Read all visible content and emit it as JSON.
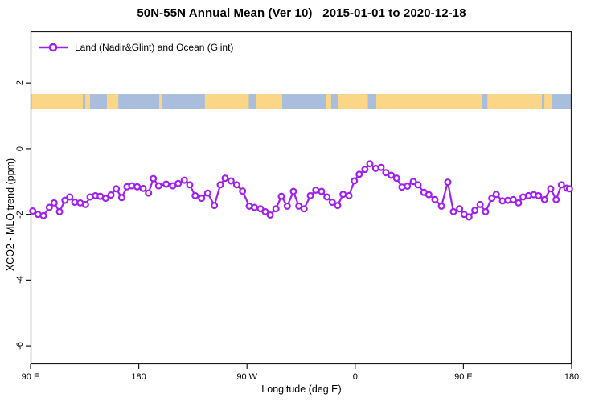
{
  "title": "50N-55N Annual Mean (Ver 10)   2015-01-01 to 2020-12-18",
  "legend": {
    "label": "Land (Nadir&Glint) and Ocean (Glint)"
  },
  "colors": {
    "series": "#A020F0",
    "land": "#FBD687",
    "ocean": "#A9BEDD",
    "axis": "#1a1a1a"
  },
  "chart_data": {
    "type": "line",
    "title": "50N-55N Annual Mean (Ver 10)   2015-01-01 to 2020-12-18",
    "xlabel": "Longitude (deg E)",
    "ylabel": "XCO2 - MLO trend (ppm)",
    "xlim_deg_offset": [
      0,
      450
    ],
    "ylim": [
      -6.56,
      3.57
    ],
    "grid": false,
    "legend_position": "top",
    "x_ticks": [
      {
        "offset": 0,
        "label": "90 E"
      },
      {
        "offset": 90,
        "label": "180"
      },
      {
        "offset": 180,
        "label": "90 W"
      },
      {
        "offset": 270,
        "label": "0"
      },
      {
        "offset": 360,
        "label": "90 E"
      },
      {
        "offset": 450,
        "label": "180"
      }
    ],
    "y_ticks": [
      {
        "value": 2,
        "label": "2"
      },
      {
        "value": 0,
        "label": "0"
      },
      {
        "value": -2,
        "label": "-2"
      },
      {
        "value": -4,
        "label": "-4"
      },
      {
        "value": -6,
        "label": "-6"
      }
    ],
    "series": [
      {
        "name": "Land (Nadir&Glint) and Ocean (Glint)",
        "color": "#A020F0",
        "marker": "open-circle",
        "points": [
          [
            1.8,
            -1.9
          ],
          [
            6.2,
            -2.0
          ],
          [
            10.7,
            -2.04
          ],
          [
            15.6,
            -1.79
          ],
          [
            19.6,
            -1.65
          ],
          [
            24.1,
            -1.92
          ],
          [
            28.6,
            -1.57
          ],
          [
            32.6,
            -1.47
          ],
          [
            36.8,
            -1.63
          ],
          [
            41.3,
            -1.65
          ],
          [
            45.7,
            -1.7
          ],
          [
            49.5,
            -1.47
          ],
          [
            54.0,
            -1.43
          ],
          [
            58.0,
            -1.45
          ],
          [
            62.4,
            -1.51
          ],
          [
            66.9,
            -1.41
          ],
          [
            71.3,
            -1.22
          ],
          [
            75.8,
            -1.49
          ],
          [
            80.2,
            -1.16
          ],
          [
            84.2,
            -1.13
          ],
          [
            88.7,
            -1.16
          ],
          [
            93.6,
            -1.21
          ],
          [
            98.1,
            -1.35
          ],
          [
            102.1,
            -0.91
          ],
          [
            106.5,
            -1.13
          ],
          [
            112.8,
            -1.08
          ],
          [
            118.3,
            -1.13
          ],
          [
            122.8,
            -1.06
          ],
          [
            127.9,
            -0.96
          ],
          [
            132.4,
            -1.1
          ],
          [
            136.9,
            -1.43
          ],
          [
            142.2,
            -1.51
          ],
          [
            147.3,
            -1.35
          ],
          [
            152.9,
            -1.73
          ],
          [
            157.8,
            -1.1
          ],
          [
            161.8,
            -0.9
          ],
          [
            166.7,
            -0.98
          ],
          [
            171.4,
            -1.1
          ],
          [
            176.3,
            -1.29
          ],
          [
            181.9,
            -1.75
          ],
          [
            186.3,
            -1.79
          ],
          [
            191.2,
            -1.83
          ],
          [
            195.2,
            -1.92
          ],
          [
            199.3,
            -2.02
          ],
          [
            204.1,
            -1.83
          ],
          [
            208.6,
            -1.45
          ],
          [
            213.5,
            -1.75
          ],
          [
            218.6,
            -1.3
          ],
          [
            223.1,
            -1.75
          ],
          [
            227.5,
            -1.83
          ],
          [
            232.7,
            -1.43
          ],
          [
            237.2,
            -1.26
          ],
          [
            242.0,
            -1.3
          ],
          [
            246.5,
            -1.47
          ],
          [
            250.9,
            -1.63
          ],
          [
            255.4,
            -1.73
          ],
          [
            259.9,
            -1.39
          ],
          [
            264.8,
            -1.43
          ],
          [
            269.3,
            -0.98
          ],
          [
            273.3,
            -0.78
          ],
          [
            278.1,
            -0.63
          ],
          [
            282.2,
            -0.46
          ],
          [
            287.0,
            -0.6
          ],
          [
            291.5,
            -0.57
          ],
          [
            295.5,
            -0.73
          ],
          [
            300.0,
            -0.81
          ],
          [
            304.4,
            -0.9
          ],
          [
            308.9,
            -1.17
          ],
          [
            313.4,
            -1.14
          ],
          [
            318.3,
            -1.0
          ],
          [
            322.3,
            -1.1
          ],
          [
            327.2,
            -1.33
          ],
          [
            331.2,
            -1.4
          ],
          [
            336.3,
            -1.55
          ],
          [
            341.7,
            -1.75
          ],
          [
            347.0,
            -1.02
          ],
          [
            351.7,
            -1.92
          ],
          [
            356.8,
            -1.83
          ],
          [
            360.6,
            -2.0
          ],
          [
            364.6,
            -2.08
          ],
          [
            369.5,
            -1.88
          ],
          [
            373.9,
            -1.7
          ],
          [
            378.4,
            -1.92
          ],
          [
            383.6,
            -1.51
          ],
          [
            387.3,
            -1.39
          ],
          [
            392.5,
            -1.59
          ],
          [
            396.9,
            -1.57
          ],
          [
            401.4,
            -1.55
          ],
          [
            405.8,
            -1.65
          ],
          [
            409.6,
            -1.47
          ],
          [
            414.1,
            -1.43
          ],
          [
            418.5,
            -1.4
          ],
          [
            422.5,
            -1.43
          ],
          [
            427.4,
            -1.55
          ],
          [
            432.6,
            -1.22
          ],
          [
            437.1,
            -1.55
          ],
          [
            441.5,
            -1.1
          ],
          [
            446.0,
            -1.2
          ],
          [
            448.2,
            -1.22
          ]
        ]
      }
    ],
    "map_strip": {
      "value_top": 1.66,
      "value_bottom": 1.22,
      "ocean_color": "#A9BEDD",
      "land_color": "#FBD687",
      "land_segments_deg": [
        [
          0,
          43.5
        ],
        [
          45.5,
          49.5
        ],
        [
          63.5,
          73
        ],
        [
          107,
          109.5
        ],
        [
          145,
          209.3
        ],
        [
          245.5,
          250
        ],
        [
          256,
          425.3
        ],
        [
          427.3,
          433.3
        ]
      ],
      "ocean_notches_deg": [
        [
          181.5,
          187.5
        ],
        [
          280.5,
          287.5
        ],
        [
          375.5,
          380
        ],
        [
          425.3,
          427.3
        ]
      ]
    }
  }
}
